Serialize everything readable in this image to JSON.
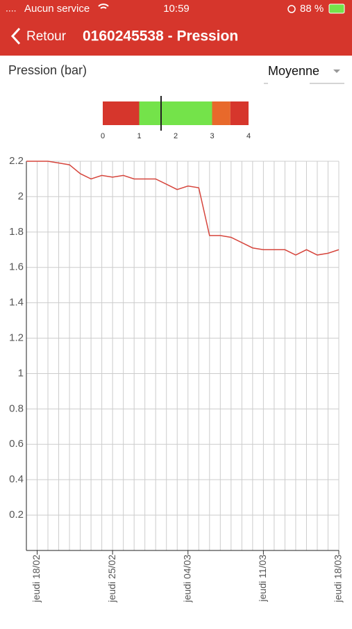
{
  "status_bar": {
    "carrier": "Aucun service",
    "time": "10:59",
    "battery": "88 %"
  },
  "header": {
    "back": "Retour",
    "title": "0160245538 - Pression"
  },
  "measure_label": "Pression (bar)",
  "dropdown": "Moyenne",
  "gauge": {
    "segments": [
      {
        "from": 0,
        "to": 1,
        "color": "#d6362c"
      },
      {
        "from": 1,
        "to": 3,
        "color": "#74e34a"
      },
      {
        "from": 3,
        "to": 3.5,
        "color": "#e8692b"
      },
      {
        "from": 3.5,
        "to": 4,
        "color": "#d6362c"
      }
    ],
    "min": 0,
    "max": 4,
    "ticks": [
      0,
      1,
      2,
      3,
      4
    ],
    "value": 1.6
  },
  "chart_data": {
    "type": "line",
    "categories": [
      null,
      "jeudi 18/02",
      null,
      null,
      null,
      null,
      null,
      null,
      "jeudi 25/02",
      null,
      null,
      null,
      null,
      null,
      null,
      "jeudi 04/03",
      null,
      null,
      null,
      null,
      null,
      null,
      "jeudi 11/03",
      null,
      null,
      null,
      null,
      null,
      null,
      "jeudi 18/03"
    ],
    "series": [
      {
        "name": "Pression",
        "color": "#d6453c",
        "values": [
          2.2,
          2.2,
          2.2,
          2.19,
          2.18,
          2.13,
          2.1,
          2.12,
          2.11,
          2.12,
          2.1,
          2.1,
          2.1,
          2.07,
          2.04,
          2.06,
          2.05,
          1.78,
          1.78,
          1.77,
          1.74,
          1.71,
          1.7,
          1.7,
          1.7,
          1.67,
          1.7,
          1.67,
          1.68,
          1.7
        ]
      }
    ],
    "ylim": [
      0,
      2.2
    ],
    "yticks": [
      0.2,
      0.4,
      0.6,
      0.8,
      1,
      1.2,
      1.4,
      1.6,
      1.8,
      2,
      2.2
    ],
    "grid": true
  }
}
